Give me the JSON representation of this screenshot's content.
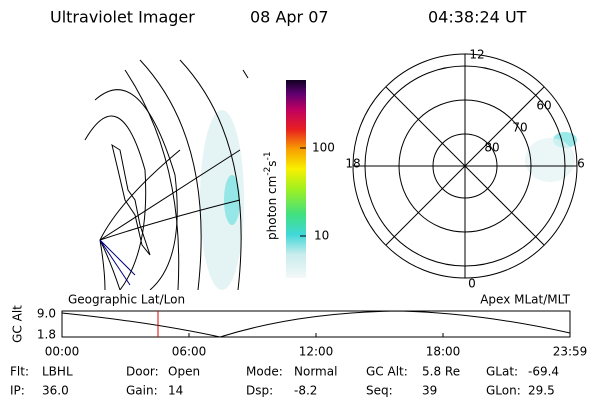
{
  "header": {
    "title": "Ultraviolet Imager",
    "date": "08 Apr 07",
    "time": "04:38:24 UT"
  },
  "colorbar": {
    "label": [
      "photon cm",
      "-2",
      "s",
      "-1"
    ],
    "ticks": [
      "100",
      "10"
    ]
  },
  "polar": {
    "mlt": [
      "12",
      "18",
      "6",
      "0"
    ],
    "lat": [
      "60",
      "70",
      "80"
    ]
  },
  "panels": {
    "left": "Geographic Lat/Lon",
    "right": "Apex MLat/MLT"
  },
  "timeline": {
    "ylabel": "GC Alt",
    "yticks": [
      "9.0",
      "1.8"
    ],
    "xticks": [
      "00:00",
      "06:00",
      "12:00",
      "18:00",
      "23:59"
    ]
  },
  "status": [
    [
      {
        "label": "Flt:",
        "value": "LBHL"
      },
      {
        "label": "Door:",
        "value": "Open"
      },
      {
        "label": "Mode:",
        "value": "Normal"
      },
      {
        "label": "GC Alt:",
        "value": "5.8 Re"
      },
      {
        "label": "GLat:",
        "value": "-69.4"
      }
    ],
    [
      {
        "label": "IP:",
        "value": "36.0"
      },
      {
        "label": "Gain:",
        "value": "14"
      },
      {
        "label": "Dsp:",
        "value": "-8.2"
      },
      {
        "label": "Seq:",
        "value": "39"
      },
      {
        "label": "GLon:",
        "value": "29.5"
      }
    ]
  ]
}
